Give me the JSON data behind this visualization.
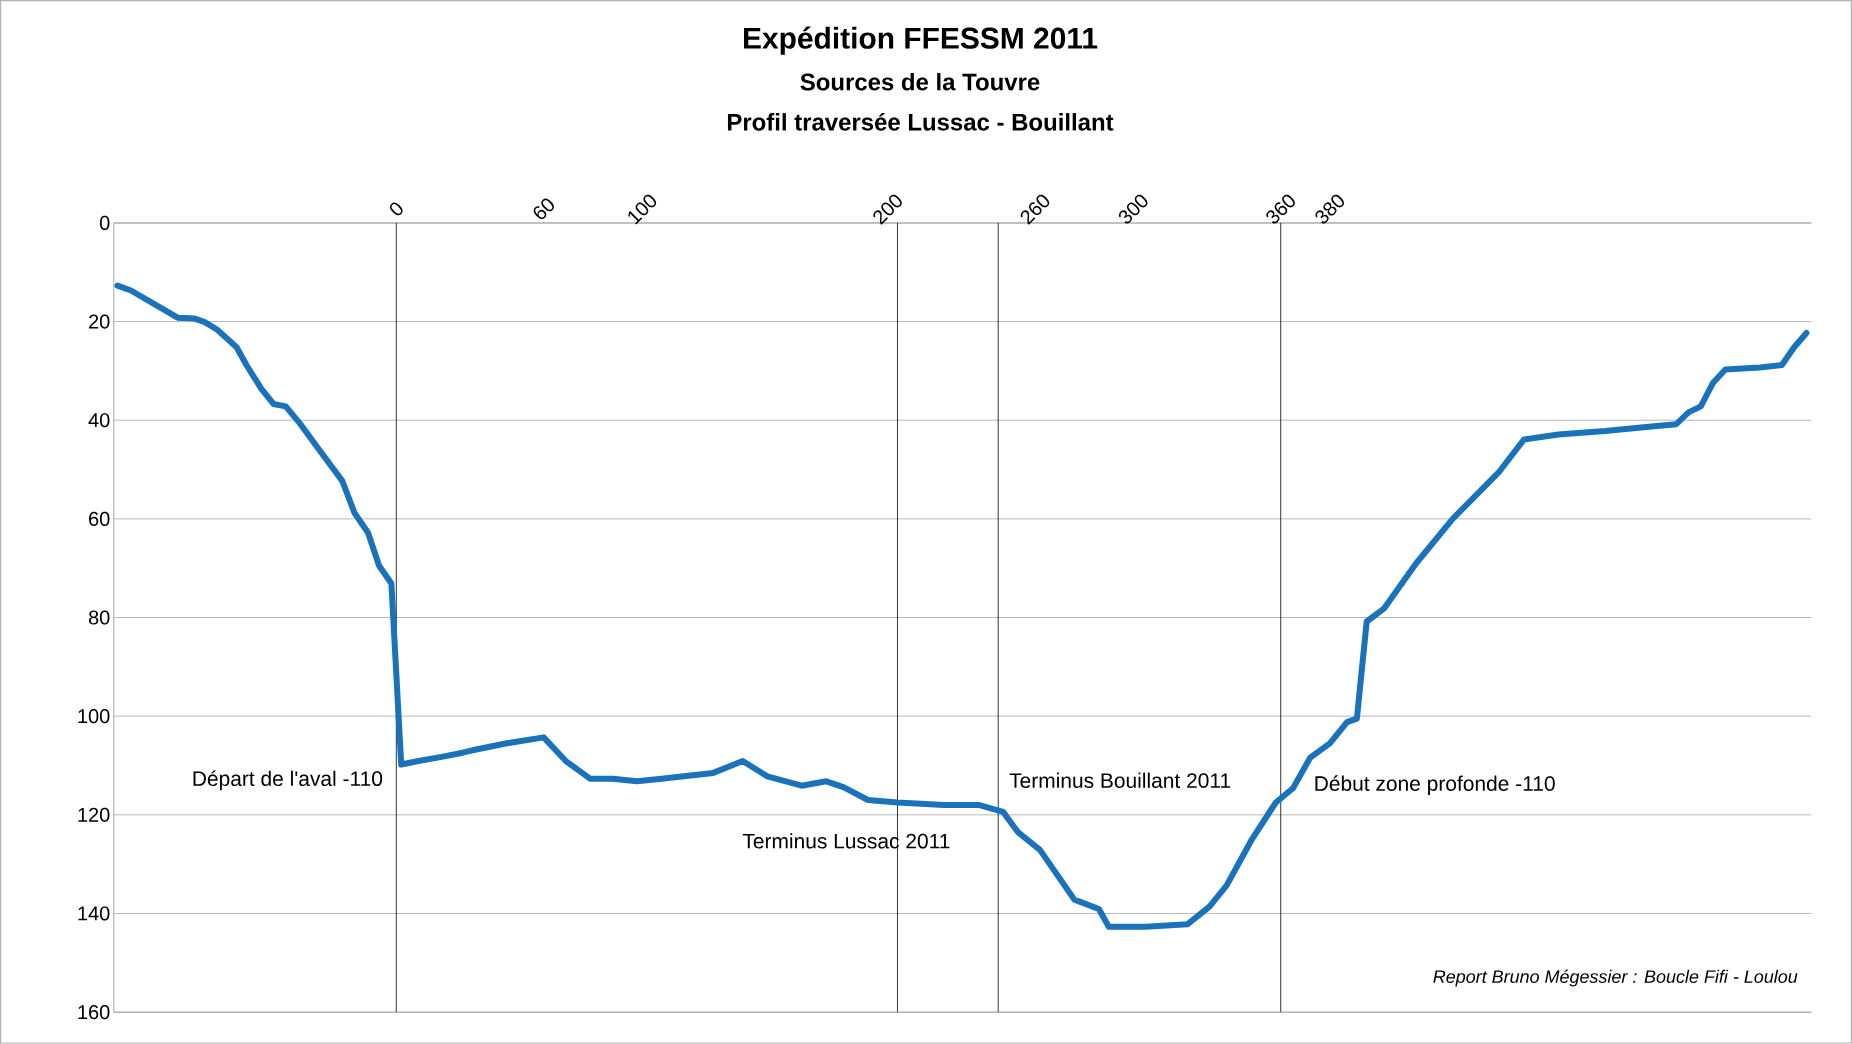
{
  "chart_data": {
    "type": "line",
    "title": "Expédition FFESSM 2011",
    "subtitle": "Sources de la Touvre",
    "x": [
      -113.5,
      -108,
      -99,
      -89,
      -82,
      -78,
      -73,
      -65,
      -61,
      -55,
      -50,
      -45,
      -39,
      -32,
      -22,
      -17,
      -11.5,
      -7,
      -2,
      2,
      9,
      19,
      27,
      33,
      45,
      60,
      69,
      79,
      88,
      98,
      108,
      117,
      129,
      141,
      151,
      165,
      175,
      182,
      192,
      204,
      223,
      237,
      247,
      253,
      262,
      276,
      286,
      290,
      305,
      322,
      331,
      338,
      348,
      358,
      365,
      372,
      380,
      387,
      391,
      395,
      402,
      415,
      430,
      449,
      459,
      473,
      492,
      512,
      521,
      526,
      531,
      536,
      541,
      555,
      564,
      569,
      574
    ],
    "series": [
      {
        "color": "#1a72bb",
        "values": [
          12.7,
          13.7,
          16.3,
          19.2,
          19.4,
          20.1,
          21.6,
          25.2,
          28.8,
          33.6,
          36.7,
          37.2,
          40.8,
          45.6,
          52.3,
          58.8,
          62.8,
          69.5,
          73.1,
          109.8,
          109.1,
          108.2,
          107.4,
          106.7,
          105.5,
          104.3,
          109.1,
          112.7,
          112.7,
          113.2,
          112.7,
          112.2,
          111.5,
          109.1,
          112.2,
          114.1,
          113.2,
          114.4,
          117.0,
          117.5,
          118.0,
          118.0,
          119.4,
          123.5,
          127.1,
          137.2,
          139.1,
          142.7,
          142.7,
          142.2,
          138.6,
          134.3,
          125.2,
          117.5,
          114.6,
          108.4,
          105.5,
          101.2,
          100.5,
          80.8,
          78.2,
          69.1,
          60.0,
          50.4,
          43.9,
          42.9,
          42.2,
          41.2,
          40.8,
          38.4,
          37.2,
          32.4,
          29.7,
          29.3,
          28.8,
          25.2,
          22.3
        ]
      }
    ],
    "xlim": [
      -115,
      576
    ],
    "xticks": [
      0,
      60,
      100,
      200,
      260,
      300,
      360,
      380
    ],
    "ylim": [
      160,
      0
    ],
    "yticks": [
      0,
      20,
      40,
      60,
      80,
      100,
      120,
      140,
      160
    ],
    "grid": "y",
    "line_style": "solid",
    "ref_lines": [
      {
        "axis": "x",
        "value": 0,
        "color": "#000000",
        "label": "Départ de l'aval -110"
      },
      {
        "axis": "x",
        "value": 204,
        "color": "#000000",
        "label": "Terminus Lussac 2011"
      },
      {
        "axis": "x",
        "value": 245,
        "color": "#000000",
        "label": "Terminus Bouillant 2011"
      },
      {
        "axis": "x",
        "value": 360,
        "color": "#000000",
        "label": "Début zone profonde -110"
      }
    ],
    "annotations": [
      "Profil traversée Lussac - Bouillant",
      "Report Bruno Mégessier : Boucle Fifi - Loulou"
    ]
  }
}
